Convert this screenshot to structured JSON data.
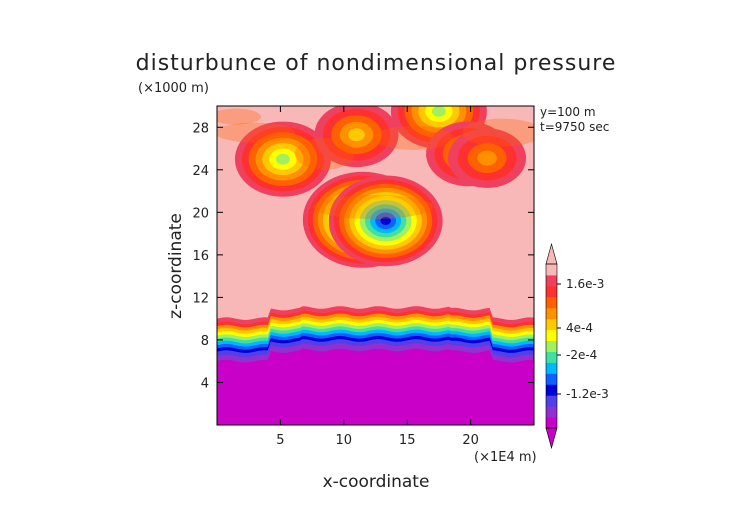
{
  "chart_data": {
    "type": "heatmap",
    "title": "disturbunce of nondimensional pressure",
    "ylabel": "z-coordinate",
    "xlabel": "x-coordinate",
    "y_unit": "(×1000 m)",
    "x_unit": "(×1E4 m)",
    "info_lines": [
      "y=100 m",
      "t=9750 sec"
    ],
    "xlim": [
      0,
      25
    ],
    "ylim": [
      0,
      30
    ],
    "x_ticks": [
      5,
      10,
      15,
      20
    ],
    "y_ticks": [
      4,
      8,
      12,
      16,
      20,
      24,
      28
    ],
    "colorbar": {
      "labels": [
        {
          "text": "1.6e-3",
          "level": 0.0016
        },
        {
          "text": "4e-4",
          "level": 0.0004
        },
        {
          "text": "-2e-4",
          "level": -0.0002
        },
        {
          "text": "-1.2e-3",
          "level": -0.0012
        }
      ],
      "colors": [
        "#c800c8",
        "#9030d0",
        "#5040e8",
        "#0000d8",
        "#1060ff",
        "#00b8ff",
        "#40e0a0",
        "#a0f060",
        "#ffff00",
        "#ffc800",
        "#ff9000",
        "#ff6000",
        "#ff3030",
        "#f04060",
        "#f8b8b8"
      ]
    },
    "background_value_range": "positive (~1.6e-3) above z≈10, strongly negative (< -1.2e-3) below z≈6",
    "features": [
      {
        "type": "low",
        "x": 11.5,
        "z": 19.3,
        "strength": 1.0
      },
      {
        "type": "low",
        "x": 13.3,
        "z": 19.2,
        "strength": 0.9
      },
      {
        "type": "low",
        "x": 5.2,
        "z": 25.0,
        "strength": 0.6
      },
      {
        "type": "low",
        "x": 11.0,
        "z": 27.3,
        "strength": 0.4
      },
      {
        "type": "low",
        "x": 17.5,
        "z": 29.5,
        "strength": 0.6
      },
      {
        "type": "low",
        "x": 19.8,
        "z": 25.5,
        "strength": 0.4
      },
      {
        "type": "low",
        "x": 21.3,
        "z": 25.1,
        "strength": 0.3
      }
    ]
  }
}
